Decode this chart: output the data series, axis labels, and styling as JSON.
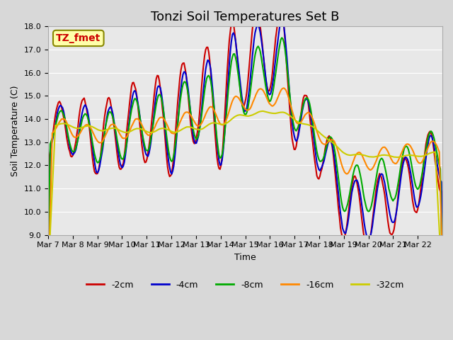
{
  "title": "Tonzi Soil Temperatures Set B",
  "xlabel": "Time",
  "ylabel": "Soil Temperature (C)",
  "ylim": [
    9.0,
    18.0
  ],
  "yticks": [
    9.0,
    10.0,
    11.0,
    12.0,
    13.0,
    14.0,
    15.0,
    16.0,
    17.0,
    18.0
  ],
  "xtick_labels": [
    "Mar 7",
    "Mar 8",
    "Mar 9",
    "Mar 10",
    "Mar 11",
    "Mar 12",
    "Mar 13",
    "Mar 14",
    "Mar 15",
    "Mar 16",
    "Mar 17",
    "Mar 18",
    "Mar 19",
    "Mar 20",
    "Mar 21",
    "Mar 22"
  ],
  "series_labels": [
    "-2cm",
    "-4cm",
    "-8cm",
    "-16cm",
    "-32cm"
  ],
  "series_colors": [
    "#cc0000",
    "#0000cc",
    "#00aa00",
    "#ff8800",
    "#cccc00"
  ],
  "line_width": 1.5,
  "annotation_text": "TZ_fmet",
  "annotation_box_color": "#ffffaa",
  "annotation_text_color": "#cc0000",
  "annotation_border_color": "#888800",
  "title_fontsize": 13,
  "label_fontsize": 9,
  "tick_fontsize": 8,
  "legend_fontsize": 9
}
